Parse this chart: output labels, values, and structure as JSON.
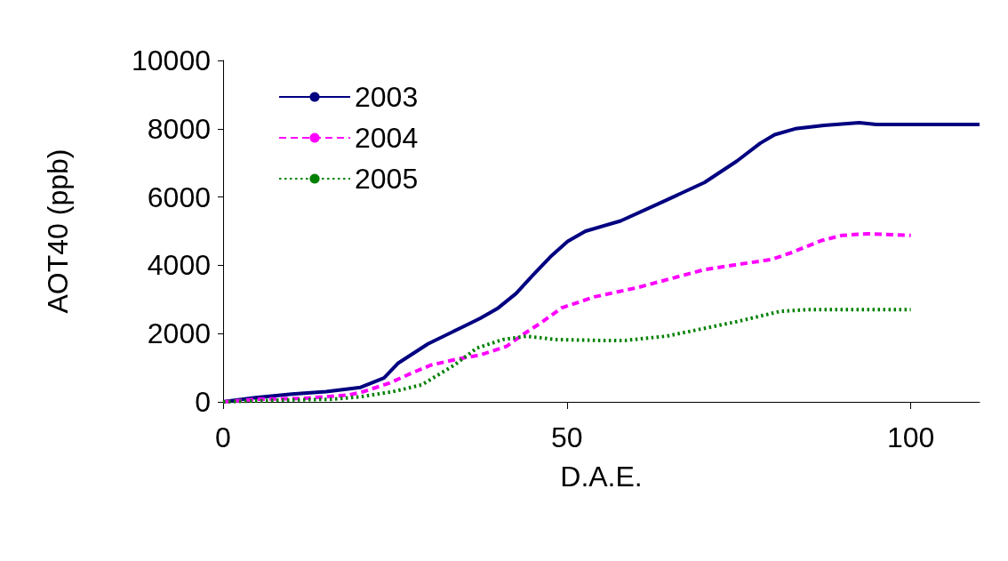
{
  "chart_data": {
    "type": "line",
    "xlabel": "D.A.E.",
    "ylabel": "AOT40 (ppb)",
    "xlim": [
      0,
      110
    ],
    "xticks": [
      0,
      50,
      100
    ],
    "ylim": [
      0,
      10000
    ],
    "yticks": [
      0,
      2000,
      4000,
      6000,
      8000,
      10000
    ],
    "grid": false,
    "legend": "top left",
    "marker": "none",
    "series": [
      {
        "name": "2003",
        "color": "#000080",
        "line_style": "solid",
        "x": [
          0,
          4.7,
          10,
          15,
          20,
          23.4,
          25.4,
          29.8,
          34.9,
          37.4,
          40,
          42.6,
          45,
          47.6,
          50.1,
          52.7,
          57.8,
          64.1,
          70,
          74.7,
          78.1,
          80.2,
          83.2,
          87.4,
          92.5,
          95,
          100,
          110
        ],
        "values": [
          0,
          125,
          225,
          300,
          425,
          700,
          1125,
          1700,
          2200,
          2450,
          2750,
          3175,
          3700,
          4250,
          4700,
          5000,
          5300,
          5875,
          6425,
          7050,
          7575,
          7825,
          8000,
          8100,
          8175,
          8125,
          8125,
          8125
        ]
      },
      {
        "name": "2004",
        "color": "#ff00ff",
        "line_style": "dashed",
        "x": [
          0,
          5,
          11.5,
          18.3,
          20.4,
          24.2,
          27.2,
          30.2,
          34,
          37.4,
          41.2,
          43.8,
          46.3,
          49.2,
          54,
          60.3,
          70,
          79.8,
          82.7,
          87,
          90,
          93.8,
          100
        ],
        "values": [
          0,
          75,
          100,
          200,
          300,
          550,
          825,
          1075,
          1250,
          1375,
          1625,
          2000,
          2325,
          2750,
          3075,
          3350,
          3875,
          4175,
          4375,
          4725,
          4875,
          4925,
          4875
        ]
      },
      {
        "name": "2005",
        "color": "#008000",
        "line_style": "dotted",
        "x": [
          0,
          8,
          15.8,
          20,
          24.7,
          28.9,
          33.6,
          36.9,
          40.7,
          44.1,
          48.3,
          54.7,
          58.5,
          64.5,
          70.5,
          74.7,
          81,
          84.9,
          100
        ],
        "values": [
          0,
          50,
          75,
          150,
          300,
          500,
          1075,
          1575,
          1825,
          1925,
          1825,
          1800,
          1800,
          1925,
          2175,
          2350,
          2650,
          2700,
          2700
        ]
      }
    ]
  }
}
